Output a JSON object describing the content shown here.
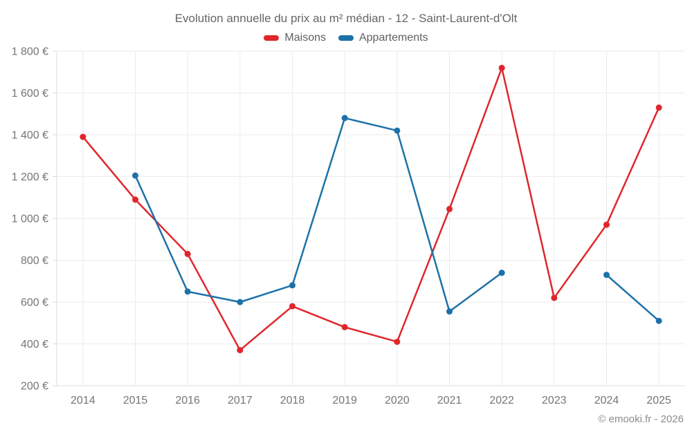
{
  "chart": {
    "title": "Evolution annuelle du prix au m² médian - 12 - Saint-Laurent-d'Olt",
    "footer": "© emooki.fr - 2026"
  },
  "chart_data": {
    "type": "line",
    "x": [
      "2014",
      "2015",
      "2016",
      "2017",
      "2018",
      "2019",
      "2020",
      "2021",
      "2022",
      "2023",
      "2024",
      "2025"
    ],
    "series": [
      {
        "name": "Maisons",
        "color": "#e0262b",
        "values": [
          1390,
          1090,
          830,
          370,
          580,
          480,
          410,
          1045,
          1720,
          620,
          970,
          1530
        ]
      },
      {
        "name": "Appartements",
        "color": "#1d71a9",
        "values": [
          null,
          1205,
          650,
          600,
          680,
          1480,
          1420,
          555,
          740,
          null,
          730,
          510
        ]
      }
    ],
    "ylim": [
      200,
      1800
    ],
    "ytick_step": 200,
    "ytick_suffix": " €",
    "grid": true,
    "legend_position": "top",
    "xlabel": "",
    "ylabel": ""
  }
}
